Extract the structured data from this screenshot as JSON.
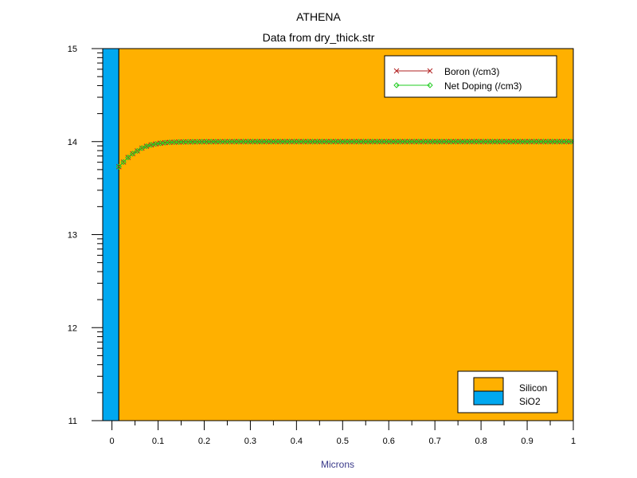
{
  "chart_data": {
    "type": "line",
    "title": "ATHENA",
    "subtitle": "Data from dry_thick.str",
    "xlabel": "Microns",
    "ylabel": "",
    "xlim": [
      -0.02,
      1.0
    ],
    "ylim": [
      11,
      15
    ],
    "yscale": "log10 (tick labels show exponent)",
    "x_ticks": [
      0,
      0.1,
      0.2,
      0.3,
      0.4,
      0.5,
      0.6,
      0.7,
      0.8,
      0.9,
      1
    ],
    "x_tick_labels": [
      "0",
      "0.1",
      "0.2",
      "0.3",
      "0.4",
      "0.5",
      "0.6",
      "0.7",
      "0.8",
      "0.9",
      "1"
    ],
    "y_ticks": [
      11,
      12,
      13,
      14,
      15
    ],
    "y_tick_labels": [
      "11",
      "12",
      "13",
      "14",
      "15"
    ],
    "grid": false,
    "regions": [
      {
        "name": "SiO2",
        "x_range": [
          -0.02,
          0.015
        ],
        "color": "#00A8F0"
      },
      {
        "name": "Silicon",
        "x_range": [
          0.015,
          1.0
        ],
        "color": "#FFB000"
      }
    ],
    "series": [
      {
        "name": "Boron (/cm3)",
        "color": "#B22222",
        "marker": "x",
        "x": [
          0.015,
          0.025,
          0.035,
          0.045,
          0.055,
          0.065,
          0.075,
          0.085,
          0.095,
          0.105,
          0.115,
          0.125,
          0.14,
          0.16,
          0.2,
          0.3,
          0.4,
          0.5,
          0.6,
          0.7,
          0.8,
          0.9,
          1.0
        ],
        "y": [
          13.73,
          13.78,
          13.83,
          13.87,
          13.9,
          13.93,
          13.95,
          13.965,
          13.975,
          13.983,
          13.988,
          13.992,
          13.995,
          13.997,
          13.999,
          14.0,
          14.0,
          14.0,
          14.0,
          14.0,
          14.0,
          14.0,
          14.0
        ]
      },
      {
        "name": "Net Doping (/cm3)",
        "color": "#22CC22",
        "marker": "diamond",
        "x": [
          0.015,
          0.025,
          0.035,
          0.045,
          0.055,
          0.065,
          0.075,
          0.085,
          0.095,
          0.105,
          0.115,
          0.125,
          0.14,
          0.16,
          0.2,
          0.3,
          0.4,
          0.5,
          0.6,
          0.7,
          0.8,
          0.9,
          1.0
        ],
        "y": [
          13.73,
          13.78,
          13.83,
          13.87,
          13.9,
          13.93,
          13.95,
          13.965,
          13.975,
          13.983,
          13.988,
          13.992,
          13.995,
          13.997,
          13.999,
          14.0,
          14.0,
          14.0,
          14.0,
          14.0,
          14.0,
          14.0,
          14.0
        ]
      }
    ],
    "legends": [
      {
        "placement": "top-right",
        "entries": [
          "Boron (/cm3)",
          "Net Doping (/cm3)"
        ]
      },
      {
        "placement": "bottom-right",
        "entries": [
          "Silicon",
          "SiO2"
        ]
      }
    ]
  }
}
